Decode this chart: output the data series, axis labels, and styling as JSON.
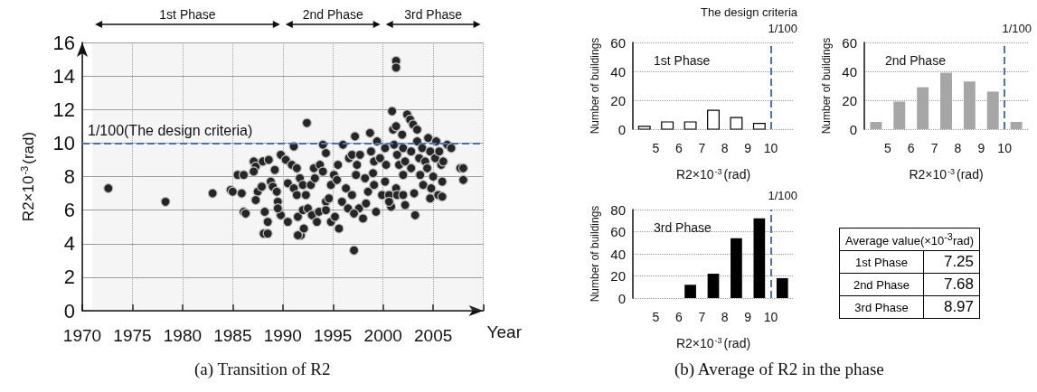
{
  "chart_data": [
    {
      "type": "scatter",
      "xlabel": "Year",
      "ylabel": "R2×10$^{-3}$(rad)",
      "annotations": [
        "(a) Transition of R2"
      ],
      "x": [
        1972.6,
        1978.3,
        1983.0,
        1984.8,
        1985.0,
        1985.5,
        1986.1,
        1985.9,
        1986.1,
        1986.3,
        1987.1,
        1987.3,
        1987.1,
        1987.5,
        1987.3,
        1988.0,
        1988.6,
        1988.2,
        1988.5,
        1988.1,
        1988.5,
        1987.9,
        1988.8,
        1989.0,
        1989.2,
        1989.4,
        1989.8,
        1990.3,
        1989.5,
        1989.8,
        1989.5,
        1990.5,
        1991.1,
        1990.9,
        1991.4,
        1990.5,
        1991.1,
        1991.7,
        1991.4,
        1992.3,
        1992.0,
        1991.5,
        1991.8,
        1992.1,
        1991.5,
        1992.0,
        1992.4,
        1992.8,
        1992.5,
        1993.1,
        1993.2,
        1992.9,
        1993.4,
        1993.6,
        1993.7,
        1994.0,
        1994.0,
        1994.3,
        1994.3,
        1994.3,
        1994.6,
        1994.8,
        1995.2,
        1994.8,
        1995.1,
        1995.4,
        1995.6,
        1995.9,
        1995.5,
        1996.0,
        1996.3,
        1996.5,
        1996.6,
        1996.9,
        1997.1,
        1997.2,
        1997.3,
        1997.4,
        1996.9,
        1997.6,
        1997.1,
        1997.7,
        1998.2,
        1998.0,
        1998.5,
        1998.3,
        1998.7,
        1998.8,
        1999.1,
        1999.0,
        1999.1,
        1999.3,
        1999.4,
        1999.7,
        1999.9,
        2000.2,
        2000.3,
        2000.2,
        2000.6,
        2000.8,
        2000.6,
        2000.9,
        2001.0,
        2001.3,
        2001.3,
        2001.3,
        2001.1,
        2001.4,
        2001.6,
        2001.3,
        2001.4,
        2001.9,
        2002.0,
        2002.2,
        2002.0,
        2002.2,
        2002.0,
        2002.4,
        2002.7,
        2002.8,
        2002.8,
        2003.0,
        2003.1,
        2003.2,
        2003.4,
        2003.4,
        2003.6,
        2003.7,
        2003.9,
        2004.2,
        2004.0,
        2004.4,
        2004.5,
        2004.7,
        2004.7,
        2004.8,
        2005.0,
        2005.2,
        2005.3,
        2005.5,
        2005.6,
        2005.8,
        2005.9,
        2005.9,
        2006.0,
        2006.4,
        2006.8,
        2007.7,
        2008.0,
        2008.0
      ],
      "values": [
        7.3,
        6.5,
        7.0,
        7.2,
        7.1,
        8.1,
        8.1,
        7.0,
        5.9,
        5.8,
        8.9,
        8.6,
        8.3,
        7.1,
        6.6,
        8.9,
        9.0,
        5.9,
        5.3,
        4.6,
        4.6,
        7.4,
        7.7,
        7.4,
        8.4,
        7.1,
        9.3,
        9.0,
        6.5,
        5.7,
        6.1,
        5.3,
        9.8,
        8.7,
        8.5,
        7.6,
        7.3,
        7.9,
        6.9,
        6.9,
        7.5,
        5.6,
        4.5,
        4.9,
        4.5,
        6.0,
        11.2,
        7.5,
        6.1,
        8.5,
        7.9,
        5.7,
        5.3,
        5.9,
        8.7,
        8.3,
        9.9,
        9.4,
        6.5,
        6.0,
        6.7,
        5.3,
        5.6,
        7.5,
        8.1,
        7.8,
        4.9,
        6.5,
        8.7,
        9.9,
        7.3,
        6.1,
        9.1,
        9.3,
        3.6,
        10.4,
        8.1,
        8.7,
        6.9,
        6.1,
        5.8,
        9.3,
        7.9,
        5.5,
        7.1,
        6.4,
        10.6,
        9.5,
        8.9,
        8.2,
        7.5,
        5.9,
        10.1,
        9.1,
        6.9,
        9.7,
        8.7,
        7.7,
        6.9,
        6.2,
        6.5,
        11.9,
        10.8,
        11.0,
        14.9,
        14.5,
        9.9,
        9.3,
        8.7,
        7.3,
        6.9,
        10.5,
        9.7,
        8.9,
        8.1,
        6.3,
        6.9,
        11.7,
        11.4,
        9.5,
        8.5,
        11.1,
        7.0,
        5.7,
        10.8,
        10.1,
        9.1,
        8.1,
        9.7,
        8.9,
        7.5,
        8.5,
        10.3,
        9.5,
        6.7,
        7.3,
        8.0,
        9.1,
        10.1,
        6.9,
        9.5,
        8.7,
        6.8,
        7.7,
        8.9,
        9.9,
        9.7,
        8.5,
        8.5,
        7.8
      ],
      "color": "#262626",
      "marker": "circle",
      "xlim": [
        1970,
        2010
      ],
      "xticks": [
        1970,
        1975,
        1980,
        1985,
        1990,
        1995,
        2000,
        2005,
        {
          "value": 2010,
          "label": null
        }
      ],
      "ylim": [
        0,
        16
      ],
      "yticks": [
        0,
        2,
        4,
        6,
        8,
        10,
        12,
        14,
        16
      ],
      "grid": true,
      "ref_lines": [
        {
          "axis": "y",
          "value": 10,
          "label": "1/100(The design criteria)",
          "color": "#4472c4",
          "line_style": "dashed"
        }
      ],
      "bands": [
        {
          "axis": "x",
          "from": 1971,
          "to": 1990,
          "label": "1st Phase"
        },
        {
          "axis": "x",
          "from": 1990,
          "to": 2000,
          "label": "2nd Phase"
        },
        {
          "axis": "x",
          "from": 2000,
          "to": 2010,
          "label": "3rd Phase"
        }
      ]
    },
    {
      "type": "histogram",
      "title": "1st Phase",
      "xlabel": "R2×10$^{-3}$(rad)",
      "ylabel": "Number of buildings",
      "annotations": [
        "The design criteria",
        "1/100"
      ],
      "bins": [
        4,
        5,
        6,
        7,
        8,
        9,
        10,
        11
      ],
      "values": [
        2,
        5,
        5,
        13,
        8,
        4,
        0
      ],
      "color": "#ffffff",
      "xlim": [
        4,
        11
      ],
      "xticks": [
        5,
        6,
        7,
        8,
        9,
        10
      ],
      "ylim": [
        0,
        60
      ],
      "yticks": [
        0,
        20,
        40,
        60
      ],
      "grid": "y",
      "ref_lines": [
        {
          "axis": "x",
          "value": 10,
          "color": "#4472c4",
          "line_style": "dashed"
        }
      ]
    },
    {
      "type": "histogram",
      "title": "2nd Phase",
      "xlabel": "R2×10$^{-3}$(rad)",
      "ylabel": "Number of buildings",
      "bins": [
        4,
        5,
        6,
        7,
        8,
        9,
        10,
        11
      ],
      "values": [
        5,
        19,
        29,
        39,
        33,
        26,
        5
      ],
      "color": "#a6a6a6",
      "annotations": [
        "1/100"
      ],
      "xlim": [
        4,
        11
      ],
      "xticks": [
        5,
        6,
        7,
        8,
        9,
        10
      ],
      "ylim": [
        0,
        60
      ],
      "yticks": [
        0,
        20,
        40,
        60
      ],
      "grid": "y",
      "ref_lines": [
        {
          "axis": "x",
          "value": 10,
          "color": "#4472c4",
          "line_style": "dashed"
        }
      ]
    },
    {
      "type": "histogram",
      "title": "3rd Phase",
      "xlabel": "R2×10$^{-3}$(rad)",
      "ylabel": "Number of buildings",
      "bins": [
        4,
        5,
        6,
        7,
        8,
        9,
        10,
        11
      ],
      "values": [
        0,
        0,
        12,
        22,
        54,
        72,
        18
      ],
      "color": "#000000",
      "annotations": [
        "1/100"
      ],
      "xlim": [
        4,
        11
      ],
      "xticks": [
        5,
        6,
        7,
        8,
        9,
        10
      ],
      "ylim": [
        0,
        80
      ],
      "yticks": [
        0,
        20,
        40,
        60,
        80
      ],
      "grid": "y",
      "ref_lines": [
        {
          "axis": "x",
          "value": 10,
          "color": "#4472c4",
          "line_style": "dashed"
        }
      ]
    },
    {
      "type": "other",
      "title": "Average value(×10$^{-3}$rad)",
      "categories": [
        "1st Phase",
        "2nd Phase",
        "3rd Phase"
      ],
      "values": [
        7.25,
        7.68,
        8.97
      ],
      "data_labels": true,
      "annotations": [
        "(b) Average of R2 in the phase"
      ]
    }
  ]
}
